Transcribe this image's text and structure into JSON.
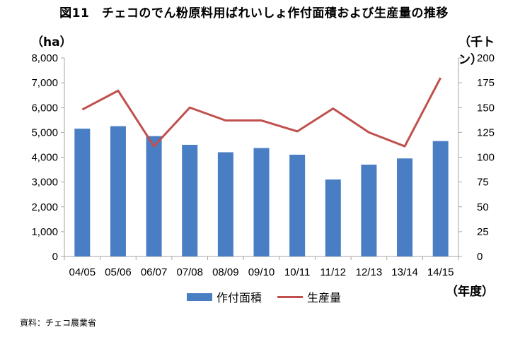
{
  "title": "図11　チェコのでん粉原料用ばれいしょ作付面積および生産量の推移",
  "unit_left": "（ha）",
  "unit_right": "（千トン）",
  "unit_x": "（年度）",
  "source": "資料：チェコ農業省",
  "colors": {
    "bar": "#4a7ec4",
    "line": "#c0504d",
    "axis": "#a6a6a6"
  },
  "chart_data": {
    "type": "bar",
    "categories": [
      "04/05",
      "05/06",
      "06/07",
      "07/08",
      "08/09",
      "09/10",
      "10/11",
      "11/12",
      "12/13",
      "13/14",
      "14/15"
    ],
    "series": [
      {
        "name": "作付面積",
        "type": "bar",
        "axis": "left",
        "values": [
          5150,
          5250,
          4850,
          4500,
          4200,
          4370,
          4100,
          3100,
          3700,
          3950,
          4650
        ]
      },
      {
        "name": "生産量",
        "type": "line",
        "axis": "right",
        "values": [
          148,
          167,
          111,
          150,
          137,
          137,
          126,
          149,
          125,
          111,
          180
        ]
      }
    ],
    "y_left": {
      "min": 0,
      "max": 8000,
      "ticks": [
        "0",
        "1,000",
        "2,000",
        "3,000",
        "4,000",
        "5,000",
        "6,000",
        "7,000",
        "8,000"
      ]
    },
    "y_right": {
      "min": 0,
      "max": 200,
      "ticks": [
        "0",
        "25",
        "50",
        "75",
        "100",
        "125",
        "150",
        "175",
        "200"
      ]
    },
    "legend_position": "bottom",
    "grid": false
  }
}
